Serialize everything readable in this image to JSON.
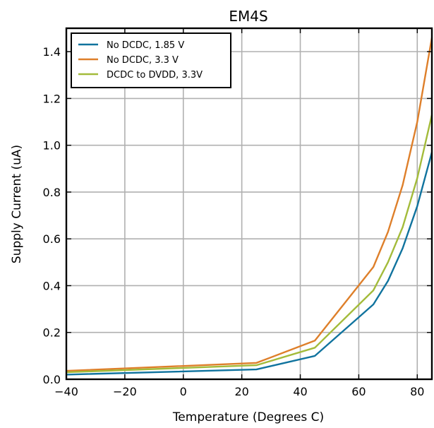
{
  "chart_data": {
    "type": "line",
    "title": "EM4S",
    "xlabel": "Temperature (Degrees C)",
    "ylabel": "Supply Current (uA)",
    "xlim": [
      -40,
      85
    ],
    "ylim": [
      0.0,
      1.5
    ],
    "xticks": [
      -40,
      -20,
      0,
      20,
      40,
      60,
      80
    ],
    "xtick_labels": [
      "−40",
      "−20",
      "0",
      "20",
      "40",
      "60",
      "80"
    ],
    "yticks": [
      0.0,
      0.2,
      0.4,
      0.6,
      0.8,
      1.0,
      1.2,
      1.4
    ],
    "ytick_labels": [
      "0.0",
      "0.2",
      "0.4",
      "0.6",
      "0.8",
      "1.0",
      "1.2",
      "1.4"
    ],
    "grid": true,
    "legend_position": "top-left",
    "series": [
      {
        "name": "No DCDC, 1.85 V",
        "color": "#10739e",
        "x": [
          -40,
          25,
          45,
          65,
          70,
          75,
          80,
          85
        ],
        "y": [
          0.02,
          0.042,
          0.1,
          0.32,
          0.42,
          0.56,
          0.74,
          0.97
        ]
      },
      {
        "name": "No DCDC, 3.3 V",
        "color": "#de7f2a",
        "x": [
          -40,
          25,
          45,
          65,
          70,
          75,
          80,
          85
        ],
        "y": [
          0.036,
          0.07,
          0.165,
          0.48,
          0.63,
          0.83,
          1.1,
          1.46
        ]
      },
      {
        "name": "DCDC to DVDD, 3.3V",
        "color": "#a3bb3a",
        "x": [
          -40,
          25,
          45,
          65,
          70,
          75,
          80,
          85
        ],
        "y": [
          0.03,
          0.06,
          0.135,
          0.38,
          0.5,
          0.65,
          0.86,
          1.13
        ]
      }
    ]
  }
}
